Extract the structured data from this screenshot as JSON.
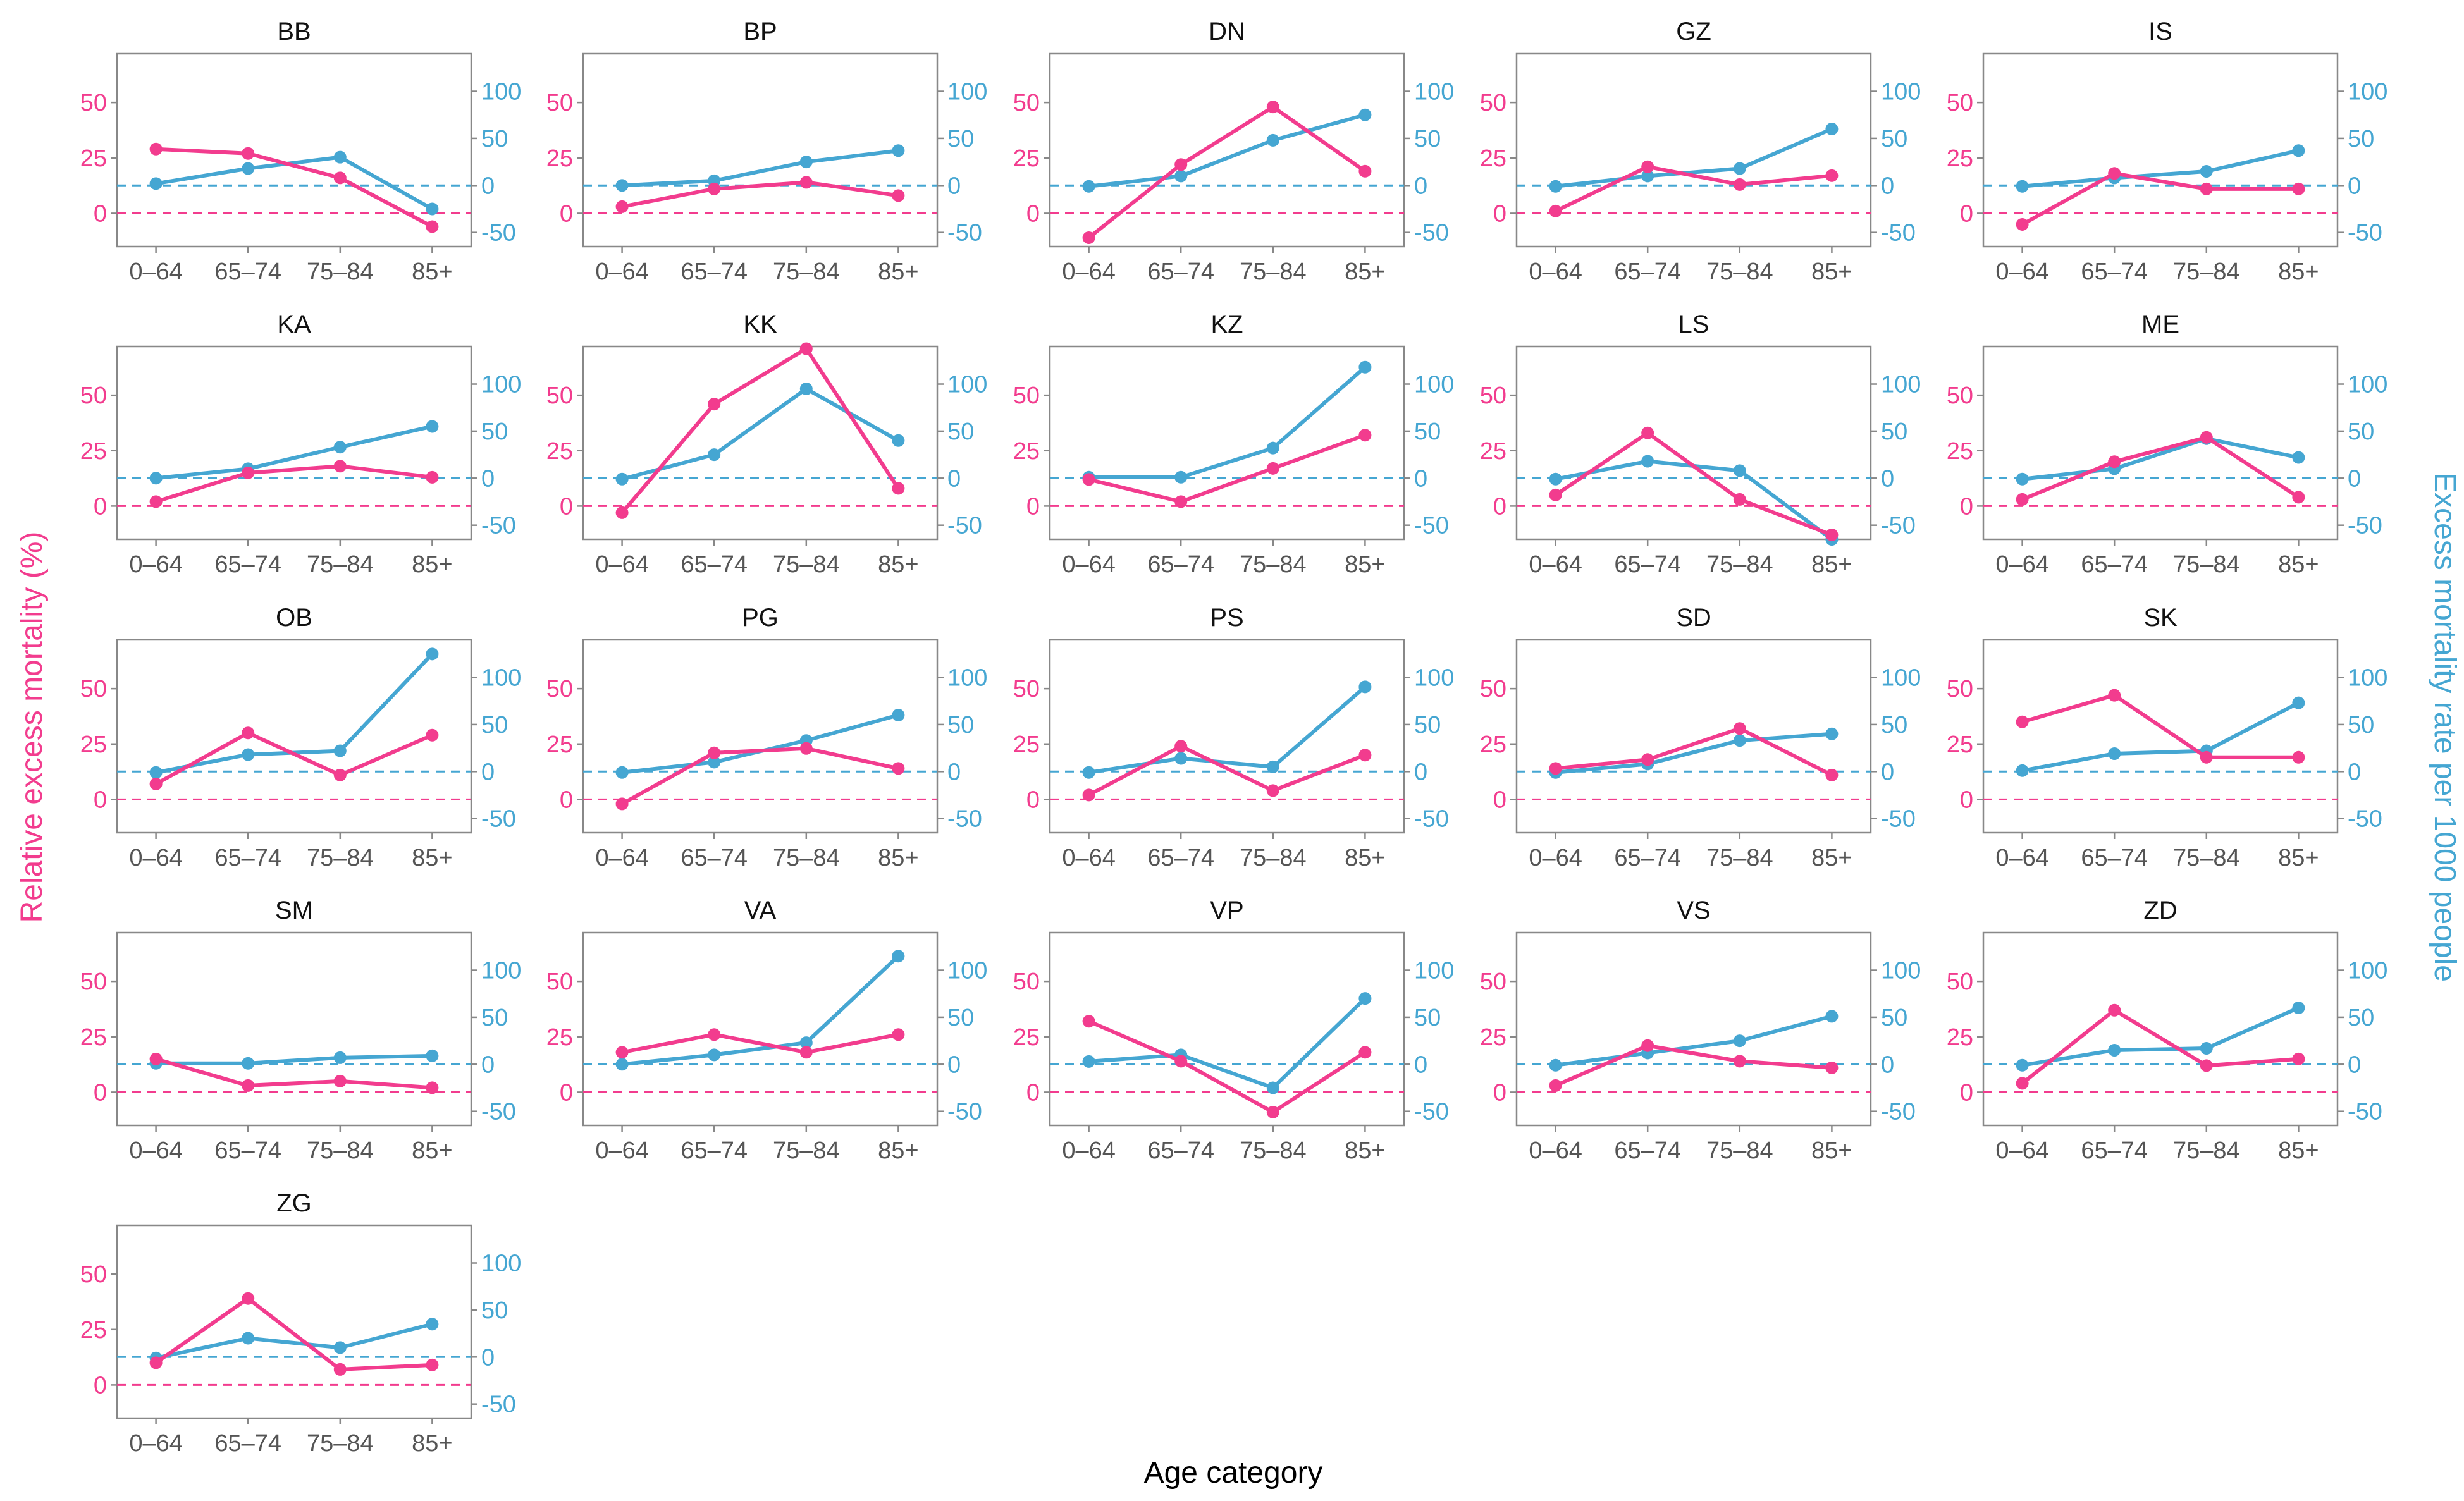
{
  "figure": {
    "ylabel_left": "Relative excess mortality (%)",
    "ylabel_right": "Excess mortality rate per 1000 people",
    "xlabel": "Age category",
    "colors": {
      "relative": "#f23c8e",
      "rate": "#45a6d2",
      "frame": "#888888",
      "text": "#555555"
    }
  },
  "chart_data": {
    "type": "line",
    "layout": "facet-grid-5-columns",
    "categories": [
      "0–64",
      "65–74",
      "75–84",
      "85+"
    ],
    "left_axis": {
      "name": "Relative excess mortality (%)",
      "lim": [
        -15,
        72
      ],
      "ticks": [
        0,
        25,
        50
      ],
      "reference": 0
    },
    "right_axis": {
      "name": "Excess mortality rate per 1000 people",
      "lim": [
        -65,
        140
      ],
      "ticks": [
        -50,
        0,
        50,
        100
      ],
      "tick_labels": [
        "-50",
        "0",
        "50",
        "100"
      ],
      "reference": 0
    },
    "series": [
      {
        "name": "Relative excess mortality (%)",
        "axis": "left",
        "color": "#f23c8e"
      },
      {
        "name": "Excess mortality rate per 1000 people",
        "axis": "right",
        "color": "#45a6d2"
      }
    ],
    "panels": [
      {
        "title": "BB",
        "relative": [
          29,
          27,
          16,
          -6
        ],
        "rate": [
          2,
          18,
          30,
          -25
        ]
      },
      {
        "title": "BP",
        "relative": [
          3,
          11,
          14,
          8
        ],
        "rate": [
          0,
          5,
          25,
          37
        ]
      },
      {
        "title": "DN",
        "relative": [
          -11,
          22,
          48,
          19
        ],
        "rate": [
          -1,
          10,
          48,
          75
        ]
      },
      {
        "title": "GZ",
        "relative": [
          1,
          21,
          13,
          17
        ],
        "rate": [
          -1,
          10,
          18,
          60
        ]
      },
      {
        "title": "IS",
        "relative": [
          -5,
          18,
          11,
          11
        ],
        "rate": [
          -1,
          8,
          15,
          37
        ]
      },
      {
        "title": "KA",
        "relative": [
          2,
          15,
          18,
          13
        ],
        "rate": [
          0,
          10,
          33,
          55
        ]
      },
      {
        "title": "KK",
        "relative": [
          -3,
          46,
          71,
          8
        ],
        "rate": [
          -1,
          25,
          95,
          40
        ]
      },
      {
        "title": "KZ",
        "relative": [
          12,
          2,
          17,
          32
        ],
        "rate": [
          1,
          1,
          32,
          118
        ]
      },
      {
        "title": "LS",
        "relative": [
          5,
          33,
          3,
          -13
        ],
        "rate": [
          -1,
          18,
          8,
          -65
        ]
      },
      {
        "title": "ME",
        "relative": [
          3,
          20,
          31,
          4
        ],
        "rate": [
          -1,
          10,
          42,
          22
        ]
      },
      {
        "title": "OB",
        "relative": [
          7,
          30,
          11,
          29
        ],
        "rate": [
          -1,
          18,
          22,
          125
        ]
      },
      {
        "title": "PG",
        "relative": [
          -2,
          21,
          23,
          14
        ],
        "rate": [
          -1,
          10,
          33,
          60
        ]
      },
      {
        "title": "PS",
        "relative": [
          2,
          24,
          4,
          20
        ],
        "rate": [
          -1,
          14,
          5,
          90
        ]
      },
      {
        "title": "SD",
        "relative": [
          14,
          18,
          32,
          11
        ],
        "rate": [
          -1,
          8,
          33,
          40
        ]
      },
      {
        "title": "SK",
        "relative": [
          35,
          47,
          19,
          19
        ],
        "rate": [
          1,
          19,
          22,
          73
        ]
      },
      {
        "title": "SM",
        "relative": [
          15,
          3,
          5,
          2
        ],
        "rate": [
          1,
          1,
          7,
          9
        ]
      },
      {
        "title": "VA",
        "relative": [
          18,
          26,
          18,
          26
        ],
        "rate": [
          0,
          10,
          23,
          115
        ]
      },
      {
        "title": "VP",
        "relative": [
          32,
          14,
          -9,
          18
        ],
        "rate": [
          3,
          10,
          -25,
          70
        ]
      },
      {
        "title": "VS",
        "relative": [
          3,
          21,
          14,
          11
        ],
        "rate": [
          -1,
          12,
          25,
          51
        ]
      },
      {
        "title": "ZD",
        "relative": [
          4,
          37,
          12,
          15
        ],
        "rate": [
          -1,
          15,
          17,
          60
        ]
      },
      {
        "title": "ZG",
        "relative": [
          10,
          39,
          7,
          9
        ],
        "rate": [
          -1,
          20,
          10,
          35
        ]
      }
    ]
  }
}
